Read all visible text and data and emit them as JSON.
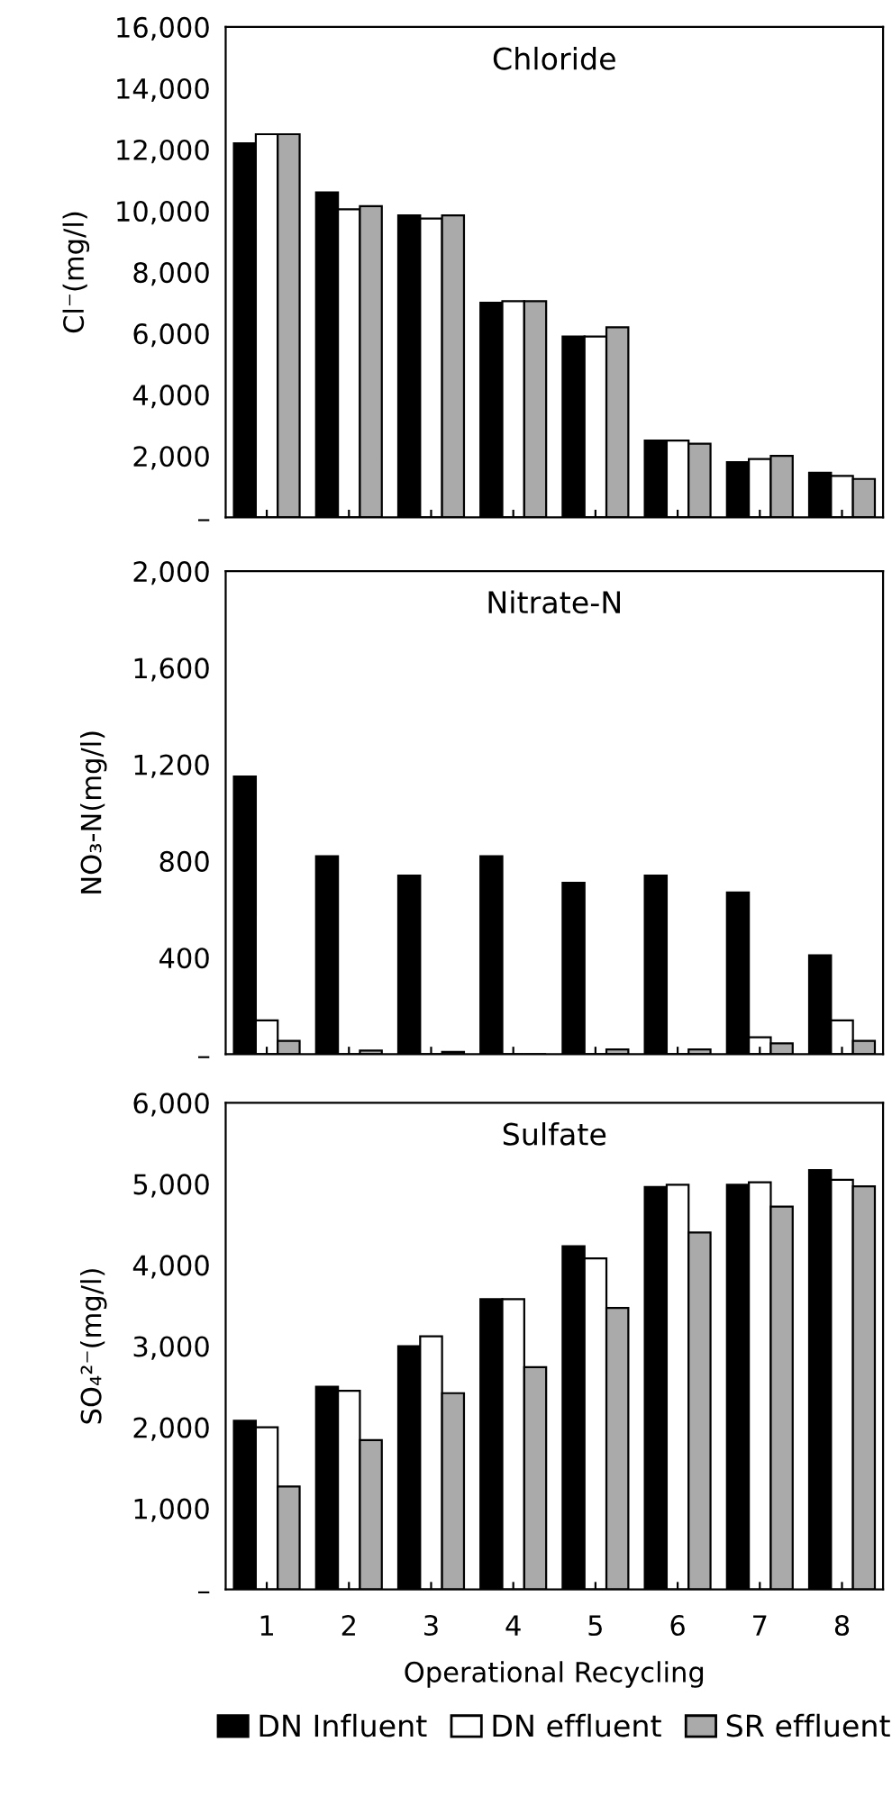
{
  "chart_data": [
    {
      "type": "bar",
      "title": "Chloride",
      "ylabel": "Cl⁻(mg/l)",
      "categories": [
        "1",
        "2",
        "3",
        "4",
        "5",
        "6",
        "7",
        "8"
      ],
      "ylim": [
        0,
        16000
      ],
      "yticks": [
        {
          "value": 0,
          "label": "–"
        },
        {
          "value": 2000,
          "label": "2,000"
        },
        {
          "value": 4000,
          "label": "4,000"
        },
        {
          "value": 6000,
          "label": "6,000"
        },
        {
          "value": 8000,
          "label": "8,000"
        },
        {
          "value": 10000,
          "label": "10,000"
        },
        {
          "value": 12000,
          "label": "12,000"
        },
        {
          "value": 14000,
          "label": "14,000"
        },
        {
          "value": 16000,
          "label": "16,000"
        }
      ],
      "tick_labels": "y",
      "grid": false,
      "legend": false,
      "series": [
        {
          "color": "#000000",
          "values": [
            12200,
            10600,
            9850,
            7000,
            5900,
            2500,
            1800,
            1450
          ]
        },
        {
          "color": "#ffffff",
          "values": [
            12500,
            10050,
            9750,
            7050,
            5900,
            2500,
            1900,
            1350
          ]
        },
        {
          "color": "#aaaaaa",
          "values": [
            12500,
            10150,
            9850,
            7050,
            6200,
            2400,
            2000,
            1250
          ]
        }
      ]
    },
    {
      "type": "bar",
      "title": "Nitrate-N",
      "ylabel": "NO₃-N(mg/l)",
      "categories": [
        "1",
        "2",
        "3",
        "4",
        "5",
        "6",
        "7",
        "8"
      ],
      "ylim": [
        0,
        2000
      ],
      "yticks": [
        {
          "value": 0,
          "label": "–"
        },
        400,
        800,
        {
          "value": 1200,
          "label": "1,200"
        },
        {
          "value": 1600,
          "label": "1,600"
        },
        {
          "value": 2000,
          "label": "2,000"
        }
      ],
      "tick_labels": "y",
      "grid": false,
      "legend": false,
      "series": [
        {
          "color": "#000000",
          "values": [
            1150,
            820,
            740,
            820,
            710,
            740,
            670,
            410
          ]
        },
        {
          "color": "#ffffff",
          "values": [
            140,
            null,
            null,
            null,
            null,
            null,
            70,
            140
          ]
        },
        {
          "color": "#aaaaaa",
          "values": [
            55,
            15,
            10,
            0,
            20,
            20,
            45,
            55
          ]
        }
      ]
    },
    {
      "type": "bar",
      "title": "Sulfate",
      "ylabel": "SO₄²⁻(mg/l)",
      "xlabel": "Operational Recycling",
      "categories": [
        "1",
        "2",
        "3",
        "4",
        "5",
        "6",
        "7",
        "8"
      ],
      "ylim": [
        0,
        6000
      ],
      "yticks": [
        {
          "value": 0,
          "label": "–"
        },
        {
          "value": 1000,
          "label": "1,000"
        },
        {
          "value": 2000,
          "label": "2,000"
        },
        {
          "value": 3000,
          "label": "3,000"
        },
        {
          "value": 4000,
          "label": "4,000"
        },
        {
          "value": 5000,
          "label": "5,000"
        },
        {
          "value": 6000,
          "label": "6,000"
        }
      ],
      "grid": false,
      "legend": "bottom",
      "series": [
        {
          "name": "DN Influent",
          "color": "#000000",
          "values": [
            2080,
            2500,
            3000,
            3580,
            4230,
            4960,
            4990,
            5170
          ]
        },
        {
          "name": "DN effluent",
          "color": "#ffffff",
          "values": [
            2000,
            2450,
            3120,
            3580,
            4080,
            4990,
            5020,
            5050
          ]
        },
        {
          "name": "SR effluent",
          "color": "#aaaaaa",
          "values": [
            1270,
            1840,
            2420,
            2740,
            3470,
            4400,
            4720,
            4970
          ]
        }
      ]
    }
  ]
}
